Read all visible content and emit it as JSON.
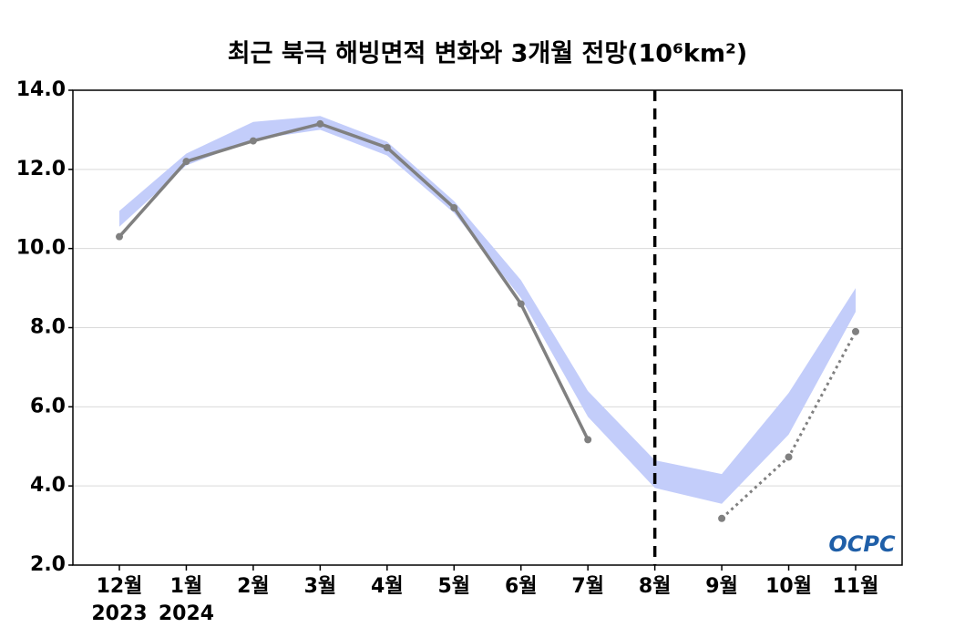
{
  "chart_data": {
    "type": "line",
    "title": "최근 북극 해빙면적 변화와 3개월 전망(10⁶km²)",
    "categories": [
      "12월",
      "1월",
      "2월",
      "3월",
      "4월",
      "5월",
      "6월",
      "7월",
      "8월",
      "9월",
      "10월",
      "11월"
    ],
    "x_sublabels": [
      "2023",
      "2024",
      null,
      null,
      null,
      null,
      null,
      null,
      null,
      null,
      null,
      null
    ],
    "series": [
      {
        "color": "#808080",
        "style": "solid",
        "values": [
          10.3,
          12.2,
          12.72,
          13.15,
          12.55,
          11.03,
          8.6,
          5.17,
          null,
          null,
          null,
          null
        ]
      },
      {
        "color": "#808080",
        "style": "dotted",
        "values": [
          null,
          null,
          null,
          null,
          null,
          null,
          null,
          null,
          null,
          3.18,
          4.73,
          7.9
        ]
      }
    ],
    "band": {
      "color": "#c3cdfa",
      "upper": [
        10.95,
        12.4,
        13.2,
        13.35,
        12.7,
        11.2,
        9.2,
        6.4,
        4.65,
        4.3,
        6.35,
        9.0
      ],
      "lower": [
        10.55,
        12.1,
        12.75,
        13.0,
        12.35,
        10.9,
        8.75,
        5.75,
        3.95,
        3.55,
        5.3,
        8.4
      ]
    },
    "vline_category": "8월",
    "ylim": [
      2,
      14
    ],
    "yticks": [
      {
        "value": 2,
        "label": "2.0"
      },
      {
        "value": 4,
        "label": "4.0"
      },
      {
        "value": 6,
        "label": "6.0"
      },
      {
        "value": 8,
        "label": "8.0"
      },
      {
        "value": 10,
        "label": "10.0"
      },
      {
        "value": 12,
        "label": "12.0"
      },
      {
        "value": 14,
        "label": "14.0"
      }
    ],
    "grid": true,
    "logo": "OCPC"
  }
}
